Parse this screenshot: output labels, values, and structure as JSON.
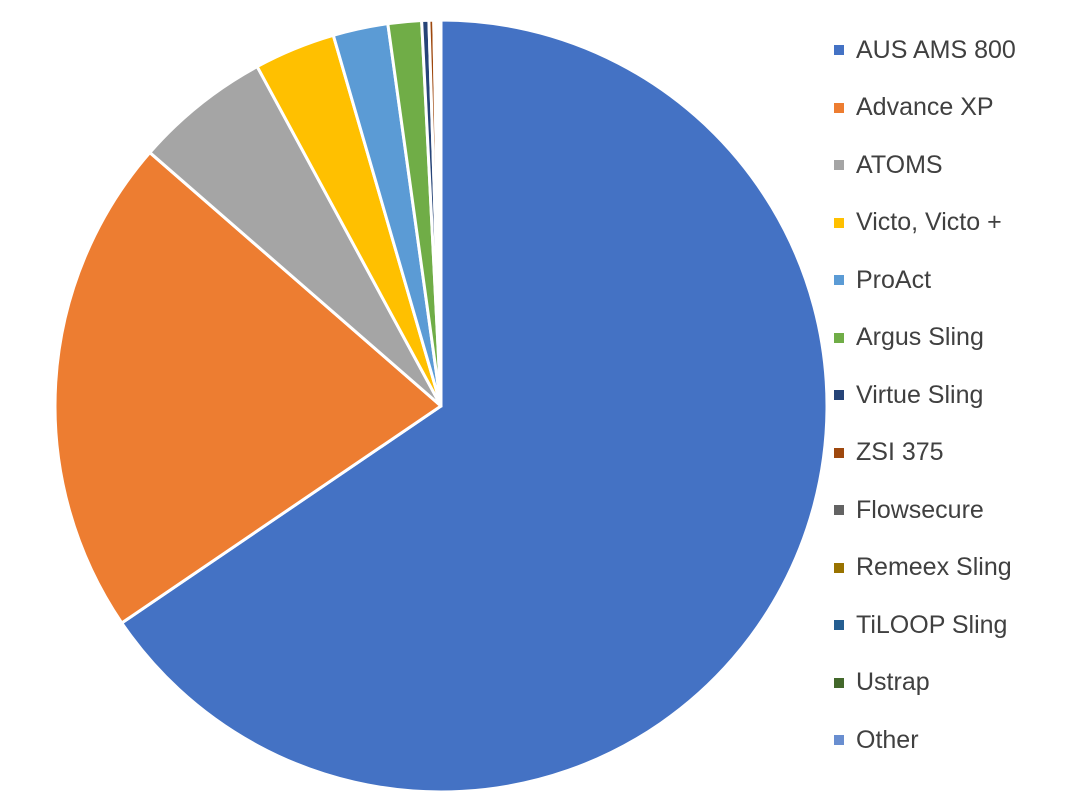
{
  "chart_data": {
    "type": "pie",
    "title": "",
    "legend_position": "right",
    "slices": [
      {
        "label": "AUS AMS 800",
        "value": 65.5,
        "color": "#4472C4"
      },
      {
        "label": "Advance XP",
        "value": 20.9,
        "color": "#ED7D31"
      },
      {
        "label": "ATOMS",
        "value": 5.7,
        "color": "#A5A5A5"
      },
      {
        "label": "Victo, Victo +",
        "value": 3.4,
        "color": "#FFC000"
      },
      {
        "label": "ProAct",
        "value": 2.3,
        "color": "#5B9BD5"
      },
      {
        "label": "Argus Sling",
        "value": 1.4,
        "color": "#70AD47"
      },
      {
        "label": "Virtue Sling",
        "value": 0.3,
        "color": "#264478"
      },
      {
        "label": "ZSI 375",
        "value": 0.2,
        "color": "#9E480E"
      },
      {
        "label": "Flowsecure",
        "value": 0.1,
        "color": "#636363"
      },
      {
        "label": "Remeex Sling",
        "value": 0.05,
        "color": "#997300"
      },
      {
        "label": "TiLOOP Sling",
        "value": 0.05,
        "color": "#255E91"
      },
      {
        "label": "Ustrap",
        "value": 0.05,
        "color": "#43682B"
      },
      {
        "label": "Other",
        "value": 0.05,
        "color": "#698ED0"
      }
    ]
  }
}
